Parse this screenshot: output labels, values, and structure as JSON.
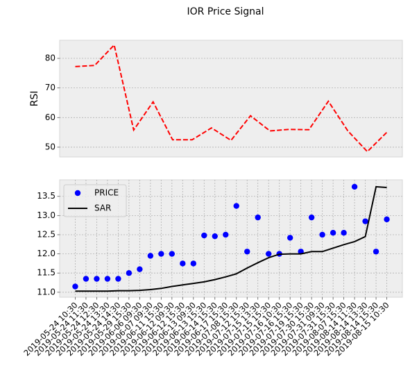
{
  "title": "IOR Price Signal",
  "chart_data": [
    {
      "type": "line",
      "ylabel": "RSI",
      "x": [
        0,
        1,
        2,
        3,
        4,
        5,
        6,
        7,
        8,
        9,
        10,
        11,
        12,
        13,
        14,
        15,
        16
      ],
      "xlim": [
        -0.8,
        16.8
      ],
      "series": [
        {
          "color": "#ff0000",
          "dash": true,
          "values": [
            77.2,
            77.6,
            84.5,
            55.8,
            65.3,
            52.5,
            52.5,
            56.5,
            52.3,
            60.6,
            55.5,
            56.0,
            55.9,
            65.5,
            55.5,
            48.5,
            55.0
          ]
        }
      ],
      "ylim": [
        46.7,
        86.1
      ],
      "yticks": [
        50,
        60,
        70,
        80
      ],
      "grid": true
    },
    {
      "type": "combo",
      "categories": [
        "2019-05-24 10:30",
        "2019-05-24 11:30",
        "2019-05-24 12:30",
        "2019-05-24 13:30",
        "2019-05-24 14:30",
        "2019-05-29 15:30",
        "2019-06-06 09:30",
        "2019-06-07 09:30",
        "2019-06-11 15:30",
        "2019-06-12 09:30",
        "2019-06-12 15:30",
        "2019-06-13 09:30",
        "2019-06-13 15:30",
        "2019-06-14 15:30",
        "2019-06-17 15:30",
        "2019-07-08 15:30",
        "2019-07-12 15:30",
        "2019-07-15 13:30",
        "2019-07-15 15:30",
        "2019-07-16 10:30",
        "2019-07-16 15:30",
        "2019-07-19 15:30",
        "2019-07-30 15:30",
        "2019-07-31 09:30",
        "2019-07-31 15:30",
        "2019-08-07 15:30",
        "2019-08-14 11:30",
        "2019-08-14 13:30",
        "2019-08-14 15:30",
        "2019-08-15 10:30"
      ],
      "series": [
        {
          "name": "PRICE",
          "color": "#0000ff",
          "style": "marker",
          "values": [
            11.15,
            11.35,
            11.35,
            11.35,
            11.35,
            11.5,
            11.6,
            11.95,
            12.0,
            12.0,
            11.75,
            11.75,
            12.48,
            12.46,
            12.5,
            13.25,
            12.06,
            12.95,
            12.0,
            12.0,
            12.42,
            12.06,
            12.95,
            12.5,
            12.55,
            12.55,
            13.75,
            12.85,
            12.06,
            12.9
          ]
        },
        {
          "name": "SAR",
          "color": "#000000",
          "style": "line",
          "values": [
            11.03,
            11.03,
            11.03,
            11.03,
            11.04,
            11.04,
            11.05,
            11.07,
            11.1,
            11.15,
            11.19,
            11.23,
            11.27,
            11.33,
            11.4,
            11.48,
            11.63,
            11.77,
            11.9,
            11.99,
            12.0,
            12.0,
            12.06,
            12.06,
            12.15,
            12.24,
            12.32,
            12.45,
            13.75,
            13.73
          ]
        }
      ],
      "ylim": [
        10.87,
        13.93
      ],
      "yticks": [
        {
          "value": 11,
          "label": "11.0"
        },
        11.5,
        {
          "value": 12,
          "label": "12.0"
        },
        12.5,
        {
          "value": 13,
          "label": "13.0"
        },
        13.5
      ],
      "grid": true,
      "legend": "upper left"
    }
  ]
}
